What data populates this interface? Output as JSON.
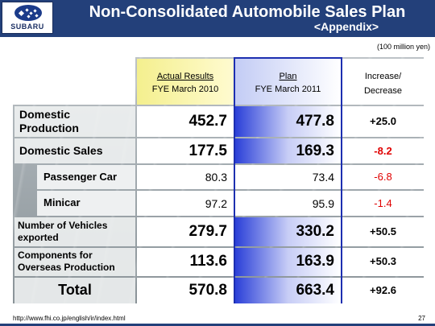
{
  "header": {
    "title": "Non-Consolidated Automobile Sales Plan",
    "subtitle": "<Appendix>",
    "logo_text": "SUBARU",
    "background_color": "#23407a"
  },
  "unit_note": "(100 million yen)",
  "table": {
    "columns": [
      {
        "line1": "Actual Results",
        "line2": "FYE March 2010"
      },
      {
        "line1": "Plan",
        "line2": "FYE March 2011"
      },
      {
        "line1": "Increase/",
        "line2": "Decrease"
      }
    ],
    "rows": [
      {
        "label": "Domestic Production",
        "actual": "452.7",
        "plan": "477.8",
        "change": "+25.0"
      },
      {
        "label": "Domestic Sales",
        "actual": "177.5",
        "plan": "169.3",
        "change": "-8.2"
      },
      {
        "label": "Passenger Car",
        "actual": "80.3",
        "plan": "73.4",
        "change": "-6.8"
      },
      {
        "label": "Minicar",
        "actual": "97.2",
        "plan": "95.9",
        "change": "-1.4"
      },
      {
        "label": "Number of Vehicles exported",
        "actual": "279.7",
        "plan": "330.2",
        "change": "+50.5"
      },
      {
        "label": "Components for Overseas Production",
        "actual": "113.6",
        "plan": "163.9",
        "change": "+50.3"
      },
      {
        "label": "Total",
        "actual": "570.8",
        "plan": "663.4",
        "change": "+92.6"
      }
    ],
    "colors": {
      "negative": "#e00000",
      "positive": "#000000",
      "accent_blue": "#1d2fb0",
      "actual_fill": "#f4ef8e"
    }
  },
  "footer": {
    "url": "http://www.fhi.co.jp/english/ir/index.html",
    "page": "27"
  }
}
